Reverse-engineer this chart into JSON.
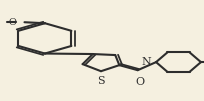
{
  "bg_color": "#f5f0e0",
  "line_color": "#2d2d2d",
  "line_width": 1.5,
  "bond_width": 1.5,
  "font_size": 7,
  "label_color": "#2d2d2d",
  "atoms": {
    "S": {
      "label": "S",
      "color": "#2d2d2d"
    },
    "O": {
      "label": "O",
      "color": "#2d2d2d"
    },
    "N": {
      "label": "N",
      "color": "#2d2d2d"
    },
    "CH3_meo": {
      "label": "O",
      "color": "#2d2d2d"
    }
  },
  "figsize": [
    2.04,
    1.01
  ],
  "dpi": 100
}
